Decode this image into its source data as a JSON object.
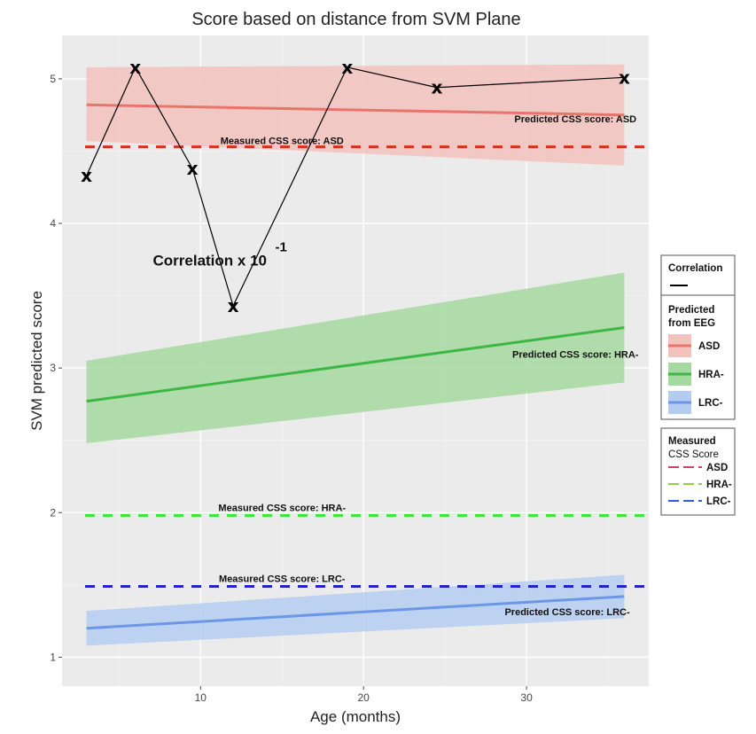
{
  "chart_data": {
    "type": "line",
    "title": "Score based on distance from SVM Plane",
    "xlabel": "Age (months)",
    "ylabel": "SVM predicted score",
    "xlim": [
      1.5,
      37.5
    ],
    "ylim": [
      0.8,
      5.3
    ],
    "x_ticks": [
      10,
      20,
      30
    ],
    "y_ticks": [
      1,
      2,
      3,
      4,
      5
    ],
    "grid": true,
    "correlation_series": {
      "marker": "x",
      "x": [
        3,
        6,
        9.5,
        12,
        19,
        24.5,
        36
      ],
      "y": [
        4.33,
        5.08,
        4.38,
        3.43,
        5.08,
        4.94,
        5.01
      ]
    },
    "predicted": [
      {
        "name": "ASD",
        "color": "#E8756B",
        "fill": "#F3C2BD",
        "x": [
          3,
          36
        ],
        "y": [
          4.82,
          4.75
        ],
        "ci_low": [
          4.57,
          4.4
        ],
        "ci_high": [
          5.08,
          5.1
        ]
      },
      {
        "name": "HRA-",
        "color": "#3DB744",
        "fill": "#A6D9A0",
        "x": [
          3,
          36
        ],
        "y": [
          2.77,
          3.28
        ],
        "ci_low": [
          2.48,
          2.9
        ],
        "ci_high": [
          3.05,
          3.66
        ]
      },
      {
        "name": "LRC-",
        "color": "#6C97E6",
        "fill": "#B5CCF1",
        "x": [
          3,
          36
        ],
        "y": [
          1.2,
          1.42
        ],
        "ci_low": [
          1.08,
          1.27
        ],
        "ci_high": [
          1.32,
          1.57
        ]
      }
    ],
    "measured": [
      {
        "name": "ASD",
        "color": "#D9301C",
        "y": 4.53
      },
      {
        "name": "HRA-",
        "color": "#3FE63F",
        "y": 1.98
      },
      {
        "name": "LRC-",
        "color": "#2323C8",
        "y": 1.49
      }
    ],
    "annotations": [
      {
        "text": "Predicted CSS score: ASD",
        "x": 33,
        "y": 4.7
      },
      {
        "text": "Measured CSS score: ASD",
        "x": 15,
        "y": 4.55
      },
      {
        "text": "Predicted CSS score: HRA-",
        "x": 33,
        "y": 3.07
      },
      {
        "text": "Measured CSS score: HRA-",
        "x": 15,
        "y": 2.01
      },
      {
        "text": "Measured CSS score: LRC-",
        "x": 15,
        "y": 1.52
      },
      {
        "text": "Predicted CSS score: LRC-",
        "x": 32.5,
        "y": 1.29
      }
    ],
    "correlation_label": {
      "text": "Correlation x 10",
      "superscript": "-1",
      "x": 10.5,
      "y": 3.71
    },
    "legend": {
      "placement": "right",
      "correlation_title": "Correlation",
      "predicted_title_1": "Predicted",
      "predicted_title_2": "from EEG",
      "predicted_labels": [
        "ASD",
        "HRA-",
        "LRC-"
      ],
      "measured_title_1": "Measured",
      "measured_title_2": "CSS Score",
      "measured_labels": [
        "ASD",
        "HRA-",
        "LRC-"
      ],
      "measured_colors": [
        "#D4416A",
        "#8BD24A",
        "#2E5BE0"
      ]
    }
  }
}
